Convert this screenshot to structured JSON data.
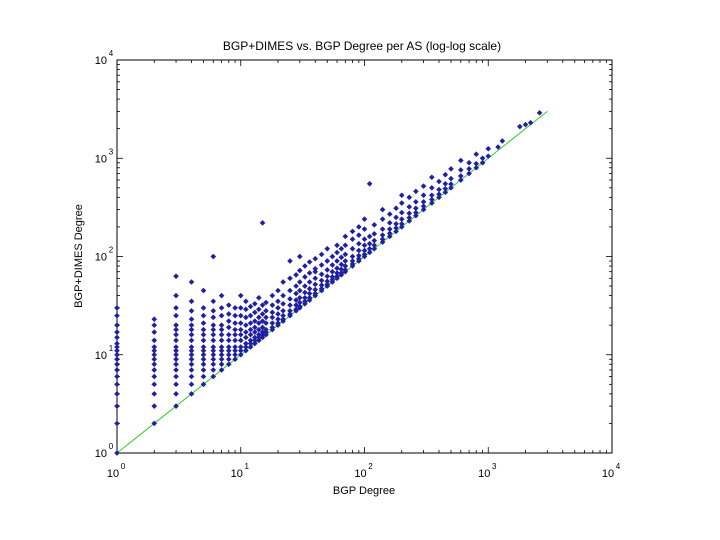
{
  "chart_data": {
    "type": "scatter",
    "title": "BGP+DIMES vs. BGP Degree per AS (log-log scale)",
    "xlabel": "BGP Degree",
    "ylabel": "BGP+DIMES Degree",
    "xscale": "log",
    "yscale": "log",
    "xlim": [
      1,
      10000
    ],
    "ylim": [
      1,
      10000
    ],
    "x_ticks": [
      {
        "base": "10",
        "exp": "0",
        "value": 1
      },
      {
        "base": "10",
        "exp": "1",
        "value": 10
      },
      {
        "base": "10",
        "exp": "2",
        "value": 100
      },
      {
        "base": "10",
        "exp": "3",
        "value": 1000
      },
      {
        "base": "10",
        "exp": "4",
        "value": 10000
      }
    ],
    "y_ticks": [
      {
        "base": "10",
        "exp": "0",
        "value": 1
      },
      {
        "base": "10",
        "exp": "1",
        "value": 10
      },
      {
        "base": "10",
        "exp": "2",
        "value": 100
      },
      {
        "base": "10",
        "exp": "3",
        "value": 1000
      },
      {
        "base": "10",
        "exp": "4",
        "value": 10000
      }
    ],
    "grid": false,
    "legend": "none",
    "colors": {
      "points": "#1f1fa0",
      "reference_line": "#33cc33",
      "axes": "#000000"
    },
    "reference_line": {
      "x": [
        1,
        3000
      ],
      "y": [
        1,
        3000
      ]
    },
    "points": [
      [
        1,
        1
      ],
      [
        1,
        2
      ],
      [
        1,
        3
      ],
      [
        1,
        4
      ],
      [
        1,
        5
      ],
      [
        1,
        6
      ],
      [
        1,
        7
      ],
      [
        1,
        8
      ],
      [
        1,
        9
      ],
      [
        1,
        10
      ],
      [
        1,
        11
      ],
      [
        1,
        12
      ],
      [
        1,
        13
      ],
      [
        1,
        15
      ],
      [
        1,
        17
      ],
      [
        1,
        20
      ],
      [
        1,
        25
      ],
      [
        1,
        30
      ],
      [
        2,
        2
      ],
      [
        2,
        3
      ],
      [
        2,
        4
      ],
      [
        2,
        5
      ],
      [
        2,
        6
      ],
      [
        2,
        7
      ],
      [
        2,
        8
      ],
      [
        2,
        9
      ],
      [
        2,
        10
      ],
      [
        2,
        11
      ],
      [
        2,
        12
      ],
      [
        2,
        14
      ],
      [
        2,
        17
      ],
      [
        2,
        20
      ],
      [
        2,
        23
      ],
      [
        3,
        3
      ],
      [
        3,
        4
      ],
      [
        3,
        5
      ],
      [
        3,
        6
      ],
      [
        3,
        7
      ],
      [
        3,
        8
      ],
      [
        3,
        9
      ],
      [
        3,
        10
      ],
      [
        3,
        11
      ],
      [
        3,
        12
      ],
      [
        3,
        14
      ],
      [
        3,
        16
      ],
      [
        3,
        18
      ],
      [
        3,
        20
      ],
      [
        3,
        25
      ],
      [
        3,
        30
      ],
      [
        3,
        40
      ],
      [
        3,
        63
      ],
      [
        4,
        4
      ],
      [
        4,
        5
      ],
      [
        4,
        6
      ],
      [
        4,
        7
      ],
      [
        4,
        8
      ],
      [
        4,
        9
      ],
      [
        4,
        10
      ],
      [
        4,
        11
      ],
      [
        4,
        12
      ],
      [
        4,
        14
      ],
      [
        4,
        16
      ],
      [
        4,
        18
      ],
      [
        4,
        20
      ],
      [
        4,
        23
      ],
      [
        4,
        28
      ],
      [
        4,
        35
      ],
      [
        4,
        55
      ],
      [
        5,
        5
      ],
      [
        5,
        6
      ],
      [
        5,
        7
      ],
      [
        5,
        8
      ],
      [
        5,
        9
      ],
      [
        5,
        10
      ],
      [
        5,
        11
      ],
      [
        5,
        12
      ],
      [
        5,
        14
      ],
      [
        5,
        16
      ],
      [
        5,
        18
      ],
      [
        5,
        21
      ],
      [
        5,
        25
      ],
      [
        5,
        30
      ],
      [
        5,
        45
      ],
      [
        6,
        6
      ],
      [
        6,
        7
      ],
      [
        6,
        8
      ],
      [
        6,
        9
      ],
      [
        6,
        10
      ],
      [
        6,
        11
      ],
      [
        6,
        12
      ],
      [
        6,
        14
      ],
      [
        6,
        16
      ],
      [
        6,
        18
      ],
      [
        6,
        20
      ],
      [
        6,
        24
      ],
      [
        6,
        28
      ],
      [
        6,
        35
      ],
      [
        6,
        100
      ],
      [
        7,
        7
      ],
      [
        7,
        8
      ],
      [
        7,
        9
      ],
      [
        7,
        10
      ],
      [
        7,
        11
      ],
      [
        7,
        12
      ],
      [
        7,
        14
      ],
      [
        7,
        16
      ],
      [
        7,
        18
      ],
      [
        7,
        20
      ],
      [
        7,
        25
      ],
      [
        7,
        30
      ],
      [
        7,
        40
      ],
      [
        8,
        8
      ],
      [
        8,
        9
      ],
      [
        8,
        10
      ],
      [
        8,
        11
      ],
      [
        8,
        12
      ],
      [
        8,
        14
      ],
      [
        8,
        16
      ],
      [
        8,
        19
      ],
      [
        8,
        22
      ],
      [
        8,
        26
      ],
      [
        8,
        32
      ],
      [
        9,
        9
      ],
      [
        9,
        10
      ],
      [
        9,
        11
      ],
      [
        9,
        12
      ],
      [
        9,
        14
      ],
      [
        9,
        16
      ],
      [
        9,
        18
      ],
      [
        9,
        21
      ],
      [
        9,
        25
      ],
      [
        9,
        30
      ],
      [
        10,
        10
      ],
      [
        10,
        11
      ],
      [
        10,
        12
      ],
      [
        10,
        14
      ],
      [
        10,
        16
      ],
      [
        10,
        18
      ],
      [
        10,
        21
      ],
      [
        10,
        25
      ],
      [
        10,
        30
      ],
      [
        10,
        40
      ],
      [
        11,
        11
      ],
      [
        11,
        12
      ],
      [
        11,
        13
      ],
      [
        11,
        15
      ],
      [
        11,
        17
      ],
      [
        11,
        20
      ],
      [
        11,
        24
      ],
      [
        11,
        29
      ],
      [
        11,
        35
      ],
      [
        12,
        12
      ],
      [
        12,
        13
      ],
      [
        12,
        14
      ],
      [
        12,
        16
      ],
      [
        12,
        18
      ],
      [
        12,
        21
      ],
      [
        12,
        25
      ],
      [
        12,
        31
      ],
      [
        13,
        13
      ],
      [
        13,
        14
      ],
      [
        13,
        15
      ],
      [
        13,
        17
      ],
      [
        13,
        19
      ],
      [
        13,
        22
      ],
      [
        13,
        27
      ],
      [
        13,
        33
      ],
      [
        14,
        14
      ],
      [
        14,
        15
      ],
      [
        14,
        16
      ],
      [
        14,
        18
      ],
      [
        14,
        21
      ],
      [
        14,
        24
      ],
      [
        14,
        29
      ],
      [
        14,
        38
      ],
      [
        15,
        15
      ],
      [
        15,
        16
      ],
      [
        15,
        17
      ],
      [
        15,
        19
      ],
      [
        15,
        22
      ],
      [
        15,
        26
      ],
      [
        15,
        32
      ],
      [
        15,
        220
      ],
      [
        16,
        16
      ],
      [
        16,
        17
      ],
      [
        16,
        18
      ],
      [
        16,
        21
      ],
      [
        16,
        24
      ],
      [
        16,
        28
      ],
      [
        16,
        34
      ],
      [
        18,
        18
      ],
      [
        18,
        19
      ],
      [
        18,
        21
      ],
      [
        18,
        24
      ],
      [
        18,
        27
      ],
      [
        18,
        32
      ],
      [
        18,
        40
      ],
      [
        20,
        20
      ],
      [
        20,
        21
      ],
      [
        20,
        23
      ],
      [
        20,
        26
      ],
      [
        20,
        30
      ],
      [
        20,
        35
      ],
      [
        20,
        45
      ],
      [
        22,
        22
      ],
      [
        22,
        23
      ],
      [
        22,
        25
      ],
      [
        22,
        28
      ],
      [
        22,
        33
      ],
      [
        22,
        40
      ],
      [
        22,
        55
      ],
      [
        25,
        25
      ],
      [
        25,
        26
      ],
      [
        25,
        28
      ],
      [
        25,
        32
      ],
      [
        25,
        37
      ],
      [
        25,
        45
      ],
      [
        25,
        60
      ],
      [
        25,
        90
      ],
      [
        28,
        28
      ],
      [
        28,
        29
      ],
      [
        28,
        32
      ],
      [
        28,
        36
      ],
      [
        28,
        42
      ],
      [
        28,
        50
      ],
      [
        28,
        65
      ],
      [
        30,
        30
      ],
      [
        30,
        31
      ],
      [
        30,
        34
      ],
      [
        30,
        38
      ],
      [
        30,
        45
      ],
      [
        30,
        55
      ],
      [
        30,
        72
      ],
      [
        30,
        100
      ],
      [
        33,
        33
      ],
      [
        33,
        35
      ],
      [
        33,
        38
      ],
      [
        33,
        43
      ],
      [
        33,
        50
      ],
      [
        33,
        62
      ],
      [
        33,
        80
      ],
      [
        36,
        36
      ],
      [
        36,
        38
      ],
      [
        36,
        42
      ],
      [
        36,
        47
      ],
      [
        36,
        55
      ],
      [
        36,
        68
      ],
      [
        36,
        88
      ],
      [
        40,
        40
      ],
      [
        40,
        42
      ],
      [
        40,
        46
      ],
      [
        40,
        52
      ],
      [
        40,
        60
      ],
      [
        40,
        75
      ],
      [
        40,
        95
      ],
      [
        40,
        70
      ],
      [
        45,
        45
      ],
      [
        45,
        47
      ],
      [
        45,
        51
      ],
      [
        45,
        57
      ],
      [
        45,
        66
      ],
      [
        45,
        82
      ],
      [
        45,
        105
      ],
      [
        50,
        50
      ],
      [
        50,
        52
      ],
      [
        50,
        56
      ],
      [
        50,
        63
      ],
      [
        50,
        73
      ],
      [
        50,
        90
      ],
      [
        50,
        120
      ],
      [
        55,
        55
      ],
      [
        55,
        58
      ],
      [
        55,
        62
      ],
      [
        55,
        70
      ],
      [
        55,
        82
      ],
      [
        55,
        100
      ],
      [
        60,
        60
      ],
      [
        60,
        63
      ],
      [
        60,
        68
      ],
      [
        60,
        76
      ],
      [
        60,
        90
      ],
      [
        60,
        110
      ],
      [
        60,
        130
      ],
      [
        65,
        65
      ],
      [
        65,
        68
      ],
      [
        65,
        74
      ],
      [
        65,
        83
      ],
      [
        65,
        98
      ],
      [
        65,
        120
      ],
      [
        70,
        70
      ],
      [
        70,
        73
      ],
      [
        70,
        80
      ],
      [
        70,
        90
      ],
      [
        70,
        105
      ],
      [
        70,
        130
      ],
      [
        70,
        160
      ],
      [
        80,
        80
      ],
      [
        80,
        84
      ],
      [
        80,
        90
      ],
      [
        80,
        100
      ],
      [
        80,
        120
      ],
      [
        80,
        150
      ],
      [
        80,
        180
      ],
      [
        90,
        90
      ],
      [
        90,
        95
      ],
      [
        90,
        102
      ],
      [
        90,
        115
      ],
      [
        90,
        135
      ],
      [
        90,
        165
      ],
      [
        90,
        200
      ],
      [
        100,
        100
      ],
      [
        100,
        105
      ],
      [
        100,
        115
      ],
      [
        100,
        130
      ],
      [
        100,
        150
      ],
      [
        100,
        190
      ],
      [
        100,
        240
      ],
      [
        110,
        110
      ],
      [
        110,
        120
      ],
      [
        110,
        135
      ],
      [
        110,
        160
      ],
      [
        110,
        550
      ],
      [
        120,
        120
      ],
      [
        120,
        130
      ],
      [
        120,
        145
      ],
      [
        120,
        170
      ],
      [
        120,
        210
      ],
      [
        140,
        140
      ],
      [
        140,
        150
      ],
      [
        140,
        165
      ],
      [
        140,
        190
      ],
      [
        140,
        240
      ],
      [
        140,
        300
      ],
      [
        160,
        160
      ],
      [
        160,
        172
      ],
      [
        160,
        190
      ],
      [
        160,
        220
      ],
      [
        160,
        270
      ],
      [
        180,
        180
      ],
      [
        180,
        195
      ],
      [
        180,
        215
      ],
      [
        180,
        250
      ],
      [
        180,
        310
      ],
      [
        200,
        200
      ],
      [
        200,
        215
      ],
      [
        200,
        240
      ],
      [
        200,
        280
      ],
      [
        200,
        350
      ],
      [
        200,
        420
      ],
      [
        230,
        230
      ],
      [
        230,
        248
      ],
      [
        230,
        275
      ],
      [
        230,
        320
      ],
      [
        230,
        400
      ],
      [
        260,
        260
      ],
      [
        260,
        280
      ],
      [
        260,
        310
      ],
      [
        260,
        360
      ],
      [
        260,
        460
      ],
      [
        300,
        300
      ],
      [
        300,
        325
      ],
      [
        300,
        360
      ],
      [
        300,
        420
      ],
      [
        300,
        520
      ],
      [
        350,
        350
      ],
      [
        350,
        380
      ],
      [
        350,
        420
      ],
      [
        350,
        500
      ],
      [
        350,
        640
      ],
      [
        400,
        400
      ],
      [
        400,
        430
      ],
      [
        400,
        480
      ],
      [
        400,
        580
      ],
      [
        450,
        450
      ],
      [
        450,
        490
      ],
      [
        450,
        550
      ],
      [
        450,
        680
      ],
      [
        500,
        500
      ],
      [
        500,
        545
      ],
      [
        500,
        620
      ],
      [
        500,
        780
      ],
      [
        600,
        600
      ],
      [
        600,
        660
      ],
      [
        600,
        760
      ],
      [
        600,
        950
      ],
      [
        700,
        700
      ],
      [
        700,
        780
      ],
      [
        700,
        900
      ],
      [
        800,
        800
      ],
      [
        800,
        880
      ],
      [
        800,
        1100
      ],
      [
        900,
        900
      ],
      [
        900,
        1000
      ],
      [
        1000,
        1050
      ],
      [
        1000,
        1250
      ],
      [
        1200,
        1300
      ],
      [
        1300,
        1500
      ],
      [
        1800,
        2100
      ],
      [
        2000,
        2200
      ],
      [
        2200,
        2300
      ],
      [
        2600,
        2900
      ]
    ]
  }
}
